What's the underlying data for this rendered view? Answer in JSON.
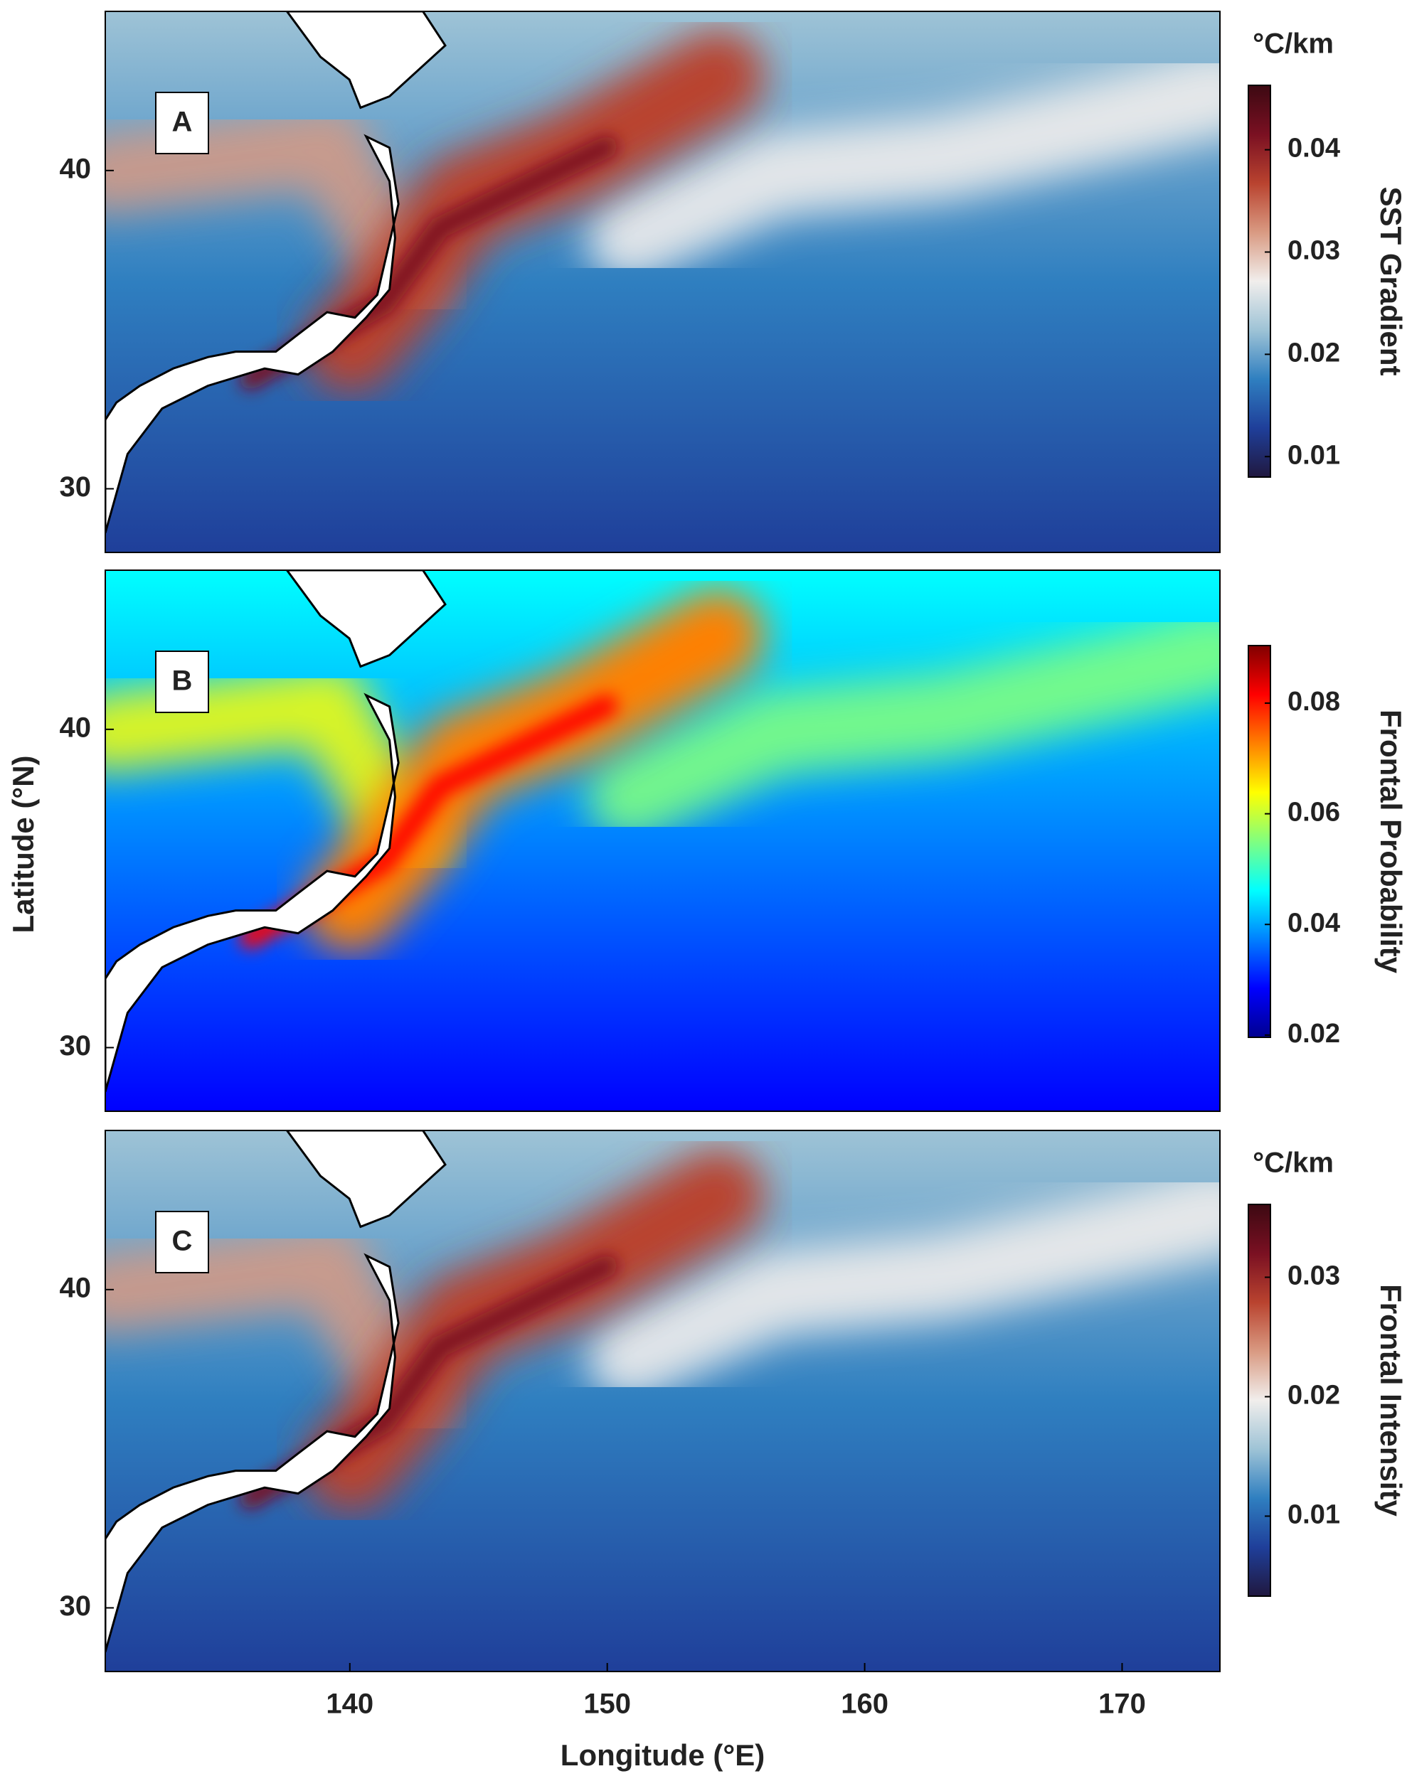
{
  "chart_data": [
    {
      "type": "heatmap",
      "panel_label": "A",
      "colorbar_title": "°C/km",
      "colorbar_label": "SST Gradient",
      "xlim": [
        130.5,
        173.8
      ],
      "ylim": [
        28,
        45
      ],
      "yticks": [
        30,
        40
      ],
      "clim": [
        0.008,
        0.0463
      ],
      "cticks": [
        0.01,
        0.02,
        0.03,
        0.04
      ],
      "colormap": [
        "#20183f",
        "#1f3f9a",
        "#2f7fc0",
        "#9ec3d6",
        "#f1eeec",
        "#d99a82",
        "#b9432f",
        "#7a1022",
        "#3c0912"
      ]
    },
    {
      "type": "heatmap",
      "panel_label": "B",
      "colorbar_label": "Frontal Probability",
      "ylabel": "Latitude (°N)",
      "xlim": [
        130.5,
        173.8
      ],
      "ylim": [
        28,
        45
      ],
      "yticks": [
        30,
        40
      ],
      "clim": [
        0.0196,
        0.0904
      ],
      "cticks": [
        0.02,
        0.04,
        0.06,
        0.08
      ],
      "colormap": [
        "#00008f",
        "#0000ff",
        "#0080ff",
        "#00ffff",
        "#80ff80",
        "#ffff00",
        "#ff8000",
        "#ff0000",
        "#800000"
      ]
    },
    {
      "type": "heatmap",
      "panel_label": "C",
      "colorbar_title": "°C/km",
      "colorbar_label": "Frontal Intensity",
      "xlabel": "Longitude (°E)",
      "xlim": [
        130.5,
        173.8
      ],
      "ylim": [
        28,
        45
      ],
      "yticks": [
        30,
        40
      ],
      "xticks": [
        140,
        150,
        160,
        170
      ],
      "clim": [
        0.0033,
        0.0361
      ],
      "cticks": [
        0.01,
        0.02,
        0.03
      ],
      "colormap": [
        "#20183f",
        "#1f3f9a",
        "#2f7fc0",
        "#9ec3d6",
        "#f1eeec",
        "#d99a82",
        "#b9432f",
        "#7a1022",
        "#3c0912"
      ]
    }
  ]
}
